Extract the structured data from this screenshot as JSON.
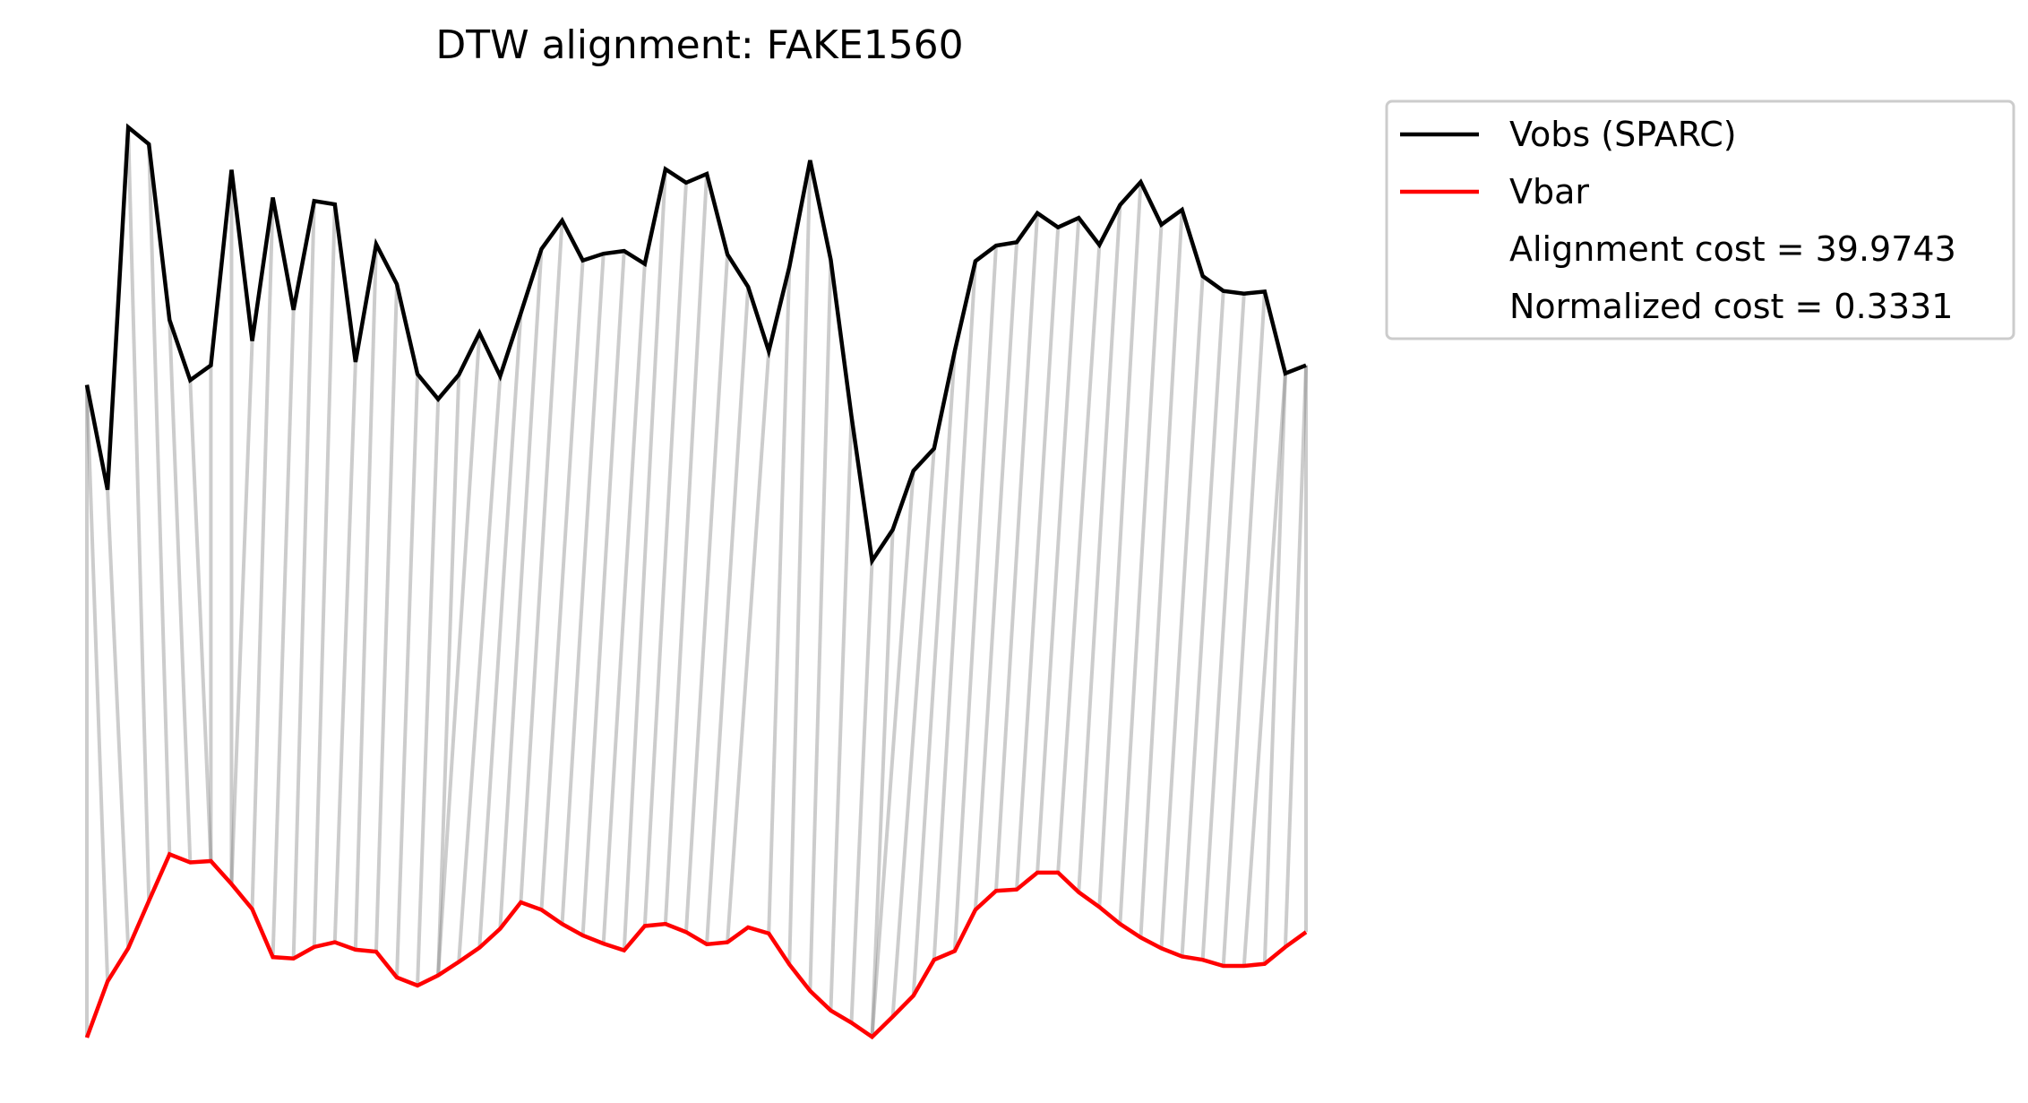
{
  "chart_data": {
    "type": "line",
    "title": "DTW alignment: FAKE1560",
    "xlabel": "",
    "ylabel": "",
    "axes_visible": false,
    "grid": false,
    "legend_placement": "outside-upper-right",
    "series": [
      {
        "name": "Vobs (SPARC)",
        "color": "#000000",
        "values": [
          0.57,
          0.415,
          0.951,
          0.926,
          0.666,
          0.577,
          0.599,
          0.888,
          0.635,
          0.847,
          0.681,
          0.842,
          0.837,
          0.604,
          0.778,
          0.719,
          0.586,
          0.549,
          0.585,
          0.647,
          0.583,
          0.676,
          0.771,
          0.813,
          0.754,
          0.764,
          0.768,
          0.749,
          0.889,
          0.869,
          0.882,
          0.763,
          0.715,
          0.62,
          0.745,
          0.902,
          0.755,
          0.524,
          0.31,
          0.356,
          0.443,
          0.476,
          0.62,
          0.753,
          0.776,
          0.781,
          0.824,
          0.803,
          0.817,
          0.777,
          0.836,
          0.87,
          0.807,
          0.829,
          0.731,
          0.709,
          0.705,
          0.708,
          0.587,
          0.599
        ]
      },
      {
        "name": "Vbar",
        "color": "#ff0000",
        "values": [
          -0.395,
          -0.312,
          -0.263,
          -0.193,
          -0.124,
          -0.136,
          -0.134,
          -0.168,
          -0.205,
          -0.276,
          -0.278,
          -0.261,
          -0.254,
          -0.265,
          -0.268,
          -0.306,
          -0.318,
          -0.303,
          -0.283,
          -0.262,
          -0.234,
          -0.195,
          -0.206,
          -0.227,
          -0.244,
          -0.256,
          -0.266,
          -0.23,
          -0.227,
          -0.239,
          -0.257,
          -0.254,
          -0.232,
          -0.241,
          -0.287,
          -0.326,
          -0.355,
          -0.373,
          -0.394,
          -0.364,
          -0.333,
          -0.28,
          -0.267,
          -0.206,
          -0.178,
          -0.176,
          -0.151,
          -0.151,
          -0.18,
          -0.202,
          -0.227,
          -0.247,
          -0.263,
          -0.275,
          -0.28,
          -0.289,
          -0.289,
          -0.286,
          -0.261,
          -0.239
        ]
      }
    ],
    "alignment_path": [
      [
        0,
        0
      ],
      [
        0,
        1
      ],
      [
        1,
        2
      ],
      [
        2,
        3
      ],
      [
        3,
        4
      ],
      [
        4,
        5
      ],
      [
        5,
        6
      ],
      [
        6,
        6
      ],
      [
        7,
        7
      ],
      [
        8,
        7
      ],
      [
        9,
        8
      ],
      [
        10,
        9
      ],
      [
        11,
        10
      ],
      [
        12,
        11
      ],
      [
        13,
        12
      ],
      [
        14,
        13
      ],
      [
        15,
        14
      ],
      [
        16,
        15
      ],
      [
        17,
        16
      ],
      [
        18,
        17
      ],
      [
        19,
        17
      ],
      [
        20,
        18
      ],
      [
        21,
        19
      ],
      [
        22,
        20
      ],
      [
        23,
        21
      ],
      [
        24,
        22
      ],
      [
        25,
        23
      ],
      [
        26,
        24
      ],
      [
        27,
        25
      ],
      [
        28,
        26
      ],
      [
        29,
        27
      ],
      [
        30,
        28
      ],
      [
        31,
        29
      ],
      [
        32,
        30
      ],
      [
        33,
        31
      ],
      [
        34,
        33
      ],
      [
        35,
        34
      ],
      [
        36,
        35
      ],
      [
        37,
        36
      ],
      [
        38,
        37
      ],
      [
        39,
        38
      ],
      [
        40,
        38
      ],
      [
        41,
        39
      ],
      [
        42,
        40
      ],
      [
        43,
        41
      ],
      [
        44,
        42
      ],
      [
        45,
        43
      ],
      [
        46,
        44
      ],
      [
        47,
        45
      ],
      [
        48,
        46
      ],
      [
        49,
        47
      ],
      [
        50,
        48
      ],
      [
        51,
        49
      ],
      [
        52,
        50
      ],
      [
        53,
        51
      ],
      [
        54,
        52
      ],
      [
        55,
        53
      ],
      [
        56,
        54
      ],
      [
        57,
        55
      ],
      [
        58,
        56
      ],
      [
        58,
        57
      ],
      [
        59,
        58
      ],
      [
        59,
        59
      ]
    ],
    "annotations": [
      "Alignment cost = 39.9743",
      "Normalized cost = 0.3331"
    ]
  },
  "legend": {
    "items": [
      {
        "label": "Vobs (SPARC)",
        "color": "#000000",
        "has_line": true
      },
      {
        "label": "Vbar",
        "color": "#ff0000",
        "has_line": true
      },
      {
        "label": "Alignment cost = 39.9743",
        "color": "",
        "has_line": false
      },
      {
        "label": "Normalized cost = 0.3331",
        "color": "",
        "has_line": false
      }
    ]
  }
}
